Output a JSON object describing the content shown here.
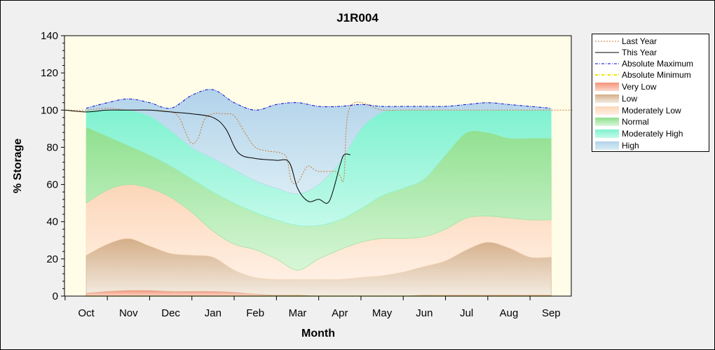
{
  "chart_data": {
    "type": "area",
    "title": "J1R004",
    "xlabel": "Month",
    "ylabel": "% Storage",
    "ylim": [
      0,
      140
    ],
    "yticks": [
      0,
      20,
      40,
      60,
      80,
      100,
      120,
      140
    ],
    "categories": [
      "Oct",
      "Nov",
      "Dec",
      "Jan",
      "Feb",
      "Mar",
      "Apr",
      "May",
      "Jun",
      "Jul",
      "Aug",
      "Sep"
    ],
    "grid": false,
    "legend_position": "right",
    "band_months": [
      0,
      0.5,
      1,
      1.5,
      2,
      2.5,
      3,
      3.5,
      4,
      4.5,
      5,
      5.5,
      6,
      6.5,
      7,
      7.5,
      8,
      8.5,
      9,
      9.5,
      10,
      10.5,
      11
    ],
    "bands": [
      {
        "name": "Very Low",
        "color": "#f4937a",
        "lower": [
          0,
          0,
          0,
          0,
          0,
          0,
          0,
          0,
          0,
          0,
          0,
          0,
          0,
          0,
          0,
          0,
          0,
          0,
          0,
          0,
          0,
          0,
          0
        ],
        "upper": [
          1.5,
          2.5,
          3,
          3,
          2.5,
          2.5,
          2.5,
          2,
          1,
          0.5,
          0.5,
          0,
          0,
          0,
          0,
          0,
          0.5,
          0.5,
          0.5,
          0.5,
          0.5,
          0.5,
          0.5
        ]
      },
      {
        "name": "Low",
        "color": "#d9b896",
        "lower": [
          1.5,
          2.5,
          3,
          3,
          2.5,
          2.5,
          2.5,
          2,
          1,
          0.5,
          0.5,
          0,
          0,
          0,
          0,
          0,
          0.5,
          0.5,
          0.5,
          0.5,
          0.5,
          0.5,
          0.5
        ],
        "upper": [
          22,
          28,
          31,
          27,
          23,
          22,
          21,
          14,
          10,
          9,
          9,
          9,
          9,
          10,
          11,
          13,
          16,
          19,
          25,
          29,
          26,
          21,
          21
        ]
      },
      {
        "name": "Moderately Low",
        "color": "#fcdcc0",
        "lower": [
          22,
          28,
          31,
          27,
          23,
          22,
          21,
          14,
          10,
          9,
          9,
          9,
          9,
          10,
          11,
          13,
          16,
          19,
          25,
          29,
          26,
          21,
          21
        ],
        "upper": [
          50,
          57,
          60,
          58,
          53,
          45,
          35,
          28,
          25,
          20,
          14,
          20,
          25,
          29,
          31,
          31,
          32,
          36,
          42,
          43,
          42,
          41,
          41
        ]
      },
      {
        "name": "Normal",
        "color": "#9fe59f",
        "lower": [
          50,
          57,
          60,
          58,
          53,
          45,
          35,
          28,
          25,
          20,
          14,
          20,
          25,
          29,
          31,
          31,
          32,
          36,
          42,
          43,
          42,
          41,
          41
        ],
        "upper": [
          91,
          86,
          81,
          76,
          70,
          63,
          56,
          50,
          45,
          41,
          38,
          38,
          41,
          47,
          54,
          58,
          63,
          76,
          88,
          88,
          85,
          85,
          85
        ]
      },
      {
        "name": "Moderately High",
        "color": "#8ff5d6",
        "lower": [
          91,
          86,
          81,
          76,
          70,
          63,
          56,
          50,
          45,
          41,
          38,
          38,
          41,
          47,
          54,
          58,
          63,
          76,
          88,
          88,
          85,
          85,
          85
        ],
        "upper": [
          100,
          100,
          100,
          97,
          89,
          80,
          74,
          68,
          62,
          58,
          55,
          60,
          72,
          90,
          99,
          100,
          100,
          100,
          100,
          100,
          100,
          100,
          100
        ]
      },
      {
        "name": "High",
        "color": "#bcd8ec",
        "lower": [
          100,
          100,
          100,
          97,
          89,
          80,
          74,
          68,
          62,
          58,
          55,
          60,
          72,
          90,
          99,
          100,
          100,
          100,
          100,
          100,
          100,
          100,
          100
        ],
        "upper": [
          101,
          104,
          106,
          104,
          101,
          108,
          111,
          104,
          100,
          103,
          104,
          102,
          102,
          103,
          102,
          102,
          102,
          102,
          103,
          104,
          103,
          102,
          101
        ]
      }
    ],
    "series": [
      {
        "name": "Last Year",
        "color": "#c87832",
        "style": "dotted",
        "x": [
          -0.5,
          0,
          0.5,
          1,
          1.5,
          2,
          2.2,
          2.35,
          2.5,
          2.65,
          2.8,
          3,
          3.25,
          3.5,
          3.75,
          4,
          4.3,
          4.6,
          4.75,
          4.85,
          5,
          5.15,
          5.25,
          5.4,
          5.5,
          5.6,
          5.75,
          5.9,
          6.0,
          6.1,
          6.25,
          7,
          7.5,
          8,
          9,
          10,
          11,
          11.5
        ],
        "y": [
          100,
          100,
          101,
          100,
          100,
          99,
          96,
          88,
          82,
          85,
          95,
          98,
          98,
          97,
          88,
          80,
          78,
          77,
          74,
          62,
          61,
          67,
          70,
          68,
          67,
          67,
          67,
          67,
          65,
          64,
          102,
          100,
          100,
          100,
          100,
          100,
          100,
          100
        ]
      },
      {
        "name": "This Year",
        "color": "#000000",
        "style": "solid",
        "x": [
          -0.5,
          0,
          0.5,
          1,
          1.5,
          2,
          2.5,
          3,
          3.3,
          3.6,
          4,
          4.5,
          4.8,
          5,
          5.25,
          5.5,
          5.75,
          6,
          6.1,
          6.25
        ],
        "y": [
          100,
          99,
          100,
          100,
          100,
          99,
          98,
          96,
          90,
          77,
          74,
          73,
          72,
          58,
          51,
          52,
          51,
          70,
          76,
          76
        ]
      },
      {
        "name": "Absolute Maximum",
        "color": "#0000d0",
        "style": "dashdot",
        "x": [
          0,
          0.5,
          1,
          1.5,
          2,
          2.5,
          3,
          3.5,
          4,
          4.5,
          5,
          5.5,
          6,
          6.5,
          7,
          7.5,
          8,
          8.5,
          9,
          9.5,
          10,
          10.5,
          11
        ],
        "y": [
          101,
          104,
          106,
          104,
          101,
          108,
          111,
          104,
          100,
          103,
          104,
          102,
          102,
          103,
          102,
          102,
          102,
          102,
          103,
          104,
          103,
          102,
          101
        ]
      },
      {
        "name": "Absolute Minimum",
        "color": "#e6e600",
        "style": "dashdot",
        "x": [
          0,
          11
        ],
        "y": [
          0,
          0
        ]
      }
    ],
    "legend": [
      "Last Year",
      "This Year",
      "Absolute Maximum",
      "Absolute Minimum",
      "Very Low",
      "Low",
      "Moderately Low",
      "Normal",
      "Moderately High",
      "High"
    ]
  },
  "colors": {
    "plot_background": "#fffde8",
    "legend_very_low": "#f4937a",
    "legend_low": "#d9b896",
    "legend_mod_low": "#fcdcc0",
    "legend_normal": "#9fe59f",
    "legend_mod_high": "#8ff5d6",
    "legend_high": "#bcd8ec"
  }
}
